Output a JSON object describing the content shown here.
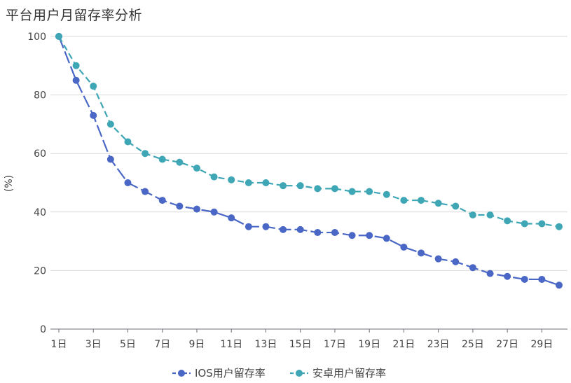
{
  "chart_data": {
    "type": "line",
    "title": "平台用户月留存率分析",
    "ylabel": "(%)",
    "xlabel": "",
    "ylim": [
      0,
      100
    ],
    "yticks": [
      0,
      20,
      40,
      60,
      80,
      100
    ],
    "x": [
      "1日",
      "2日",
      "3日",
      "4日",
      "5日",
      "6日",
      "7日",
      "8日",
      "9日",
      "10日",
      "11日",
      "12日",
      "13日",
      "14日",
      "15日",
      "16日",
      "17日",
      "18日",
      "19日",
      "20日",
      "21日",
      "22日",
      "23日",
      "24日",
      "25日",
      "26日",
      "27日",
      "28日",
      "29日",
      "30日"
    ],
    "xtick_labels": [
      "1日",
      "3日",
      "5日",
      "7日",
      "9日",
      "11日",
      "13日",
      "15日",
      "17日",
      "19日",
      "21日",
      "23日",
      "25日",
      "27日",
      "29日"
    ],
    "grid": "horizontal",
    "legend_position": "bottom",
    "series": [
      {
        "name": "IOS用户留存率",
        "color": "#4a67c6",
        "line_style": "long-dash",
        "values": [
          100,
          85,
          73,
          58,
          50,
          47,
          44,
          42,
          41,
          40,
          38,
          35,
          35,
          34,
          34,
          33,
          33,
          32,
          32,
          31,
          28,
          26,
          24,
          23,
          21,
          19,
          18,
          17,
          17,
          15
        ]
      },
      {
        "name": "安卓用户留存率",
        "color": "#3ea6b5",
        "line_style": "dash",
        "values": [
          100,
          90,
          83,
          70,
          64,
          60,
          58,
          57,
          55,
          52,
          51,
          50,
          50,
          49,
          49,
          48,
          48,
          47,
          47,
          46,
          44,
          44,
          43,
          42,
          39,
          39,
          37,
          36,
          36,
          35
        ]
      }
    ]
  }
}
